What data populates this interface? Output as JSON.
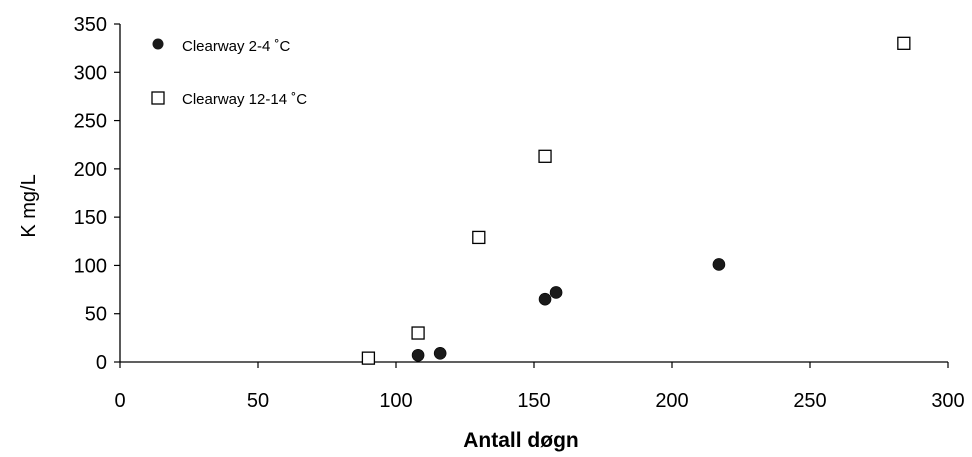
{
  "chart_data": {
    "type": "scatter",
    "xlabel": "Antall døgn",
    "ylabel": "K mg/L",
    "xlim": [
      0,
      300
    ],
    "ylim": [
      0,
      350
    ],
    "x_ticks": [
      0,
      50,
      100,
      150,
      200,
      250,
      300
    ],
    "y_ticks": [
      0,
      50,
      100,
      150,
      200,
      250,
      300,
      350
    ],
    "grid": false,
    "legend": "top-left",
    "series": [
      {
        "name": "Clearway 2-4 ˚C",
        "marker": "filled-circle",
        "color": "#1a1a1a",
        "x": [
          108,
          116,
          154,
          158,
          217
        ],
        "y": [
          7,
          9,
          65,
          72,
          101
        ]
      },
      {
        "name": "Clearway 12-14 ˚C",
        "marker": "open-square",
        "color": "#000000",
        "x": [
          90,
          108,
          130,
          154,
          284
        ],
        "y": [
          4,
          30,
          129,
          213,
          330
        ]
      }
    ]
  }
}
